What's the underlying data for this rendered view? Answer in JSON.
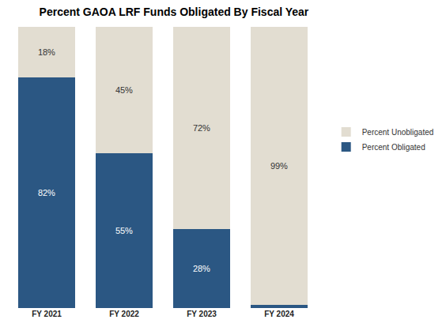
{
  "chart_data": {
    "type": "bar",
    "title": "Percent GAOA LRF Funds Obligated By Fiscal Year",
    "categories": [
      "FY 2021",
      "FY 2022",
      "FY 2023",
      "FY 2024"
    ],
    "series": [
      {
        "name": "Percent Obligated",
        "color": "#2b5783",
        "values": [
          82,
          55,
          28,
          1
        ],
        "value_labels": [
          "82%",
          "55%",
          "28%",
          null
        ]
      },
      {
        "name": "Percent Unobligated",
        "color": "#e2ddd1",
        "values": [
          18,
          45,
          72,
          99
        ],
        "value_labels": [
          "18%",
          "45%",
          "72%",
          "99%"
        ]
      }
    ],
    "stacked": true,
    "data_labels": true,
    "legend": "right",
    "ylim": [
      0,
      100
    ],
    "tick_labels": "x",
    "grid": false
  }
}
